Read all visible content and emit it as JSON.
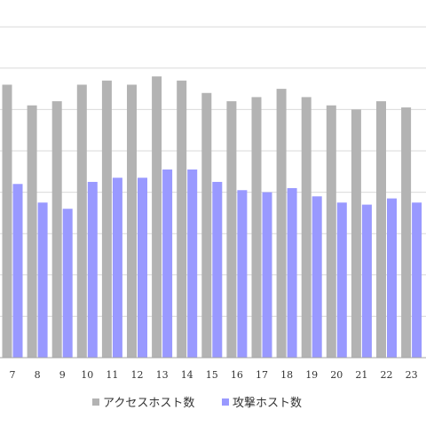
{
  "chart_data": {
    "type": "bar",
    "categories": [
      "7",
      "8",
      "9",
      "10",
      "11",
      "12",
      "13",
      "14",
      "15",
      "16",
      "17",
      "18",
      "19",
      "20",
      "21",
      "22",
      "23"
    ],
    "series": [
      {
        "name": "アクセスホスト数",
        "color": "#b3b3b3",
        "values": [
          6.6,
          6.1,
          6.2,
          6.6,
          6.7,
          6.6,
          6.8,
          6.7,
          6.4,
          6.2,
          6.3,
          6.5,
          6.3,
          6.1,
          6.0,
          6.2,
          6.05
        ]
      },
      {
        "name": "攻撃ホスト数",
        "color": "#9999ff",
        "values": [
          4.2,
          3.75,
          3.6,
          4.25,
          4.35,
          4.35,
          4.55,
          4.55,
          4.25,
          4.05,
          4.0,
          4.1,
          3.9,
          3.75,
          3.7,
          3.85,
          3.75
        ]
      }
    ],
    "ylim": [
      0,
      8.5
    ],
    "grid": true,
    "legend_position": "bottom"
  }
}
